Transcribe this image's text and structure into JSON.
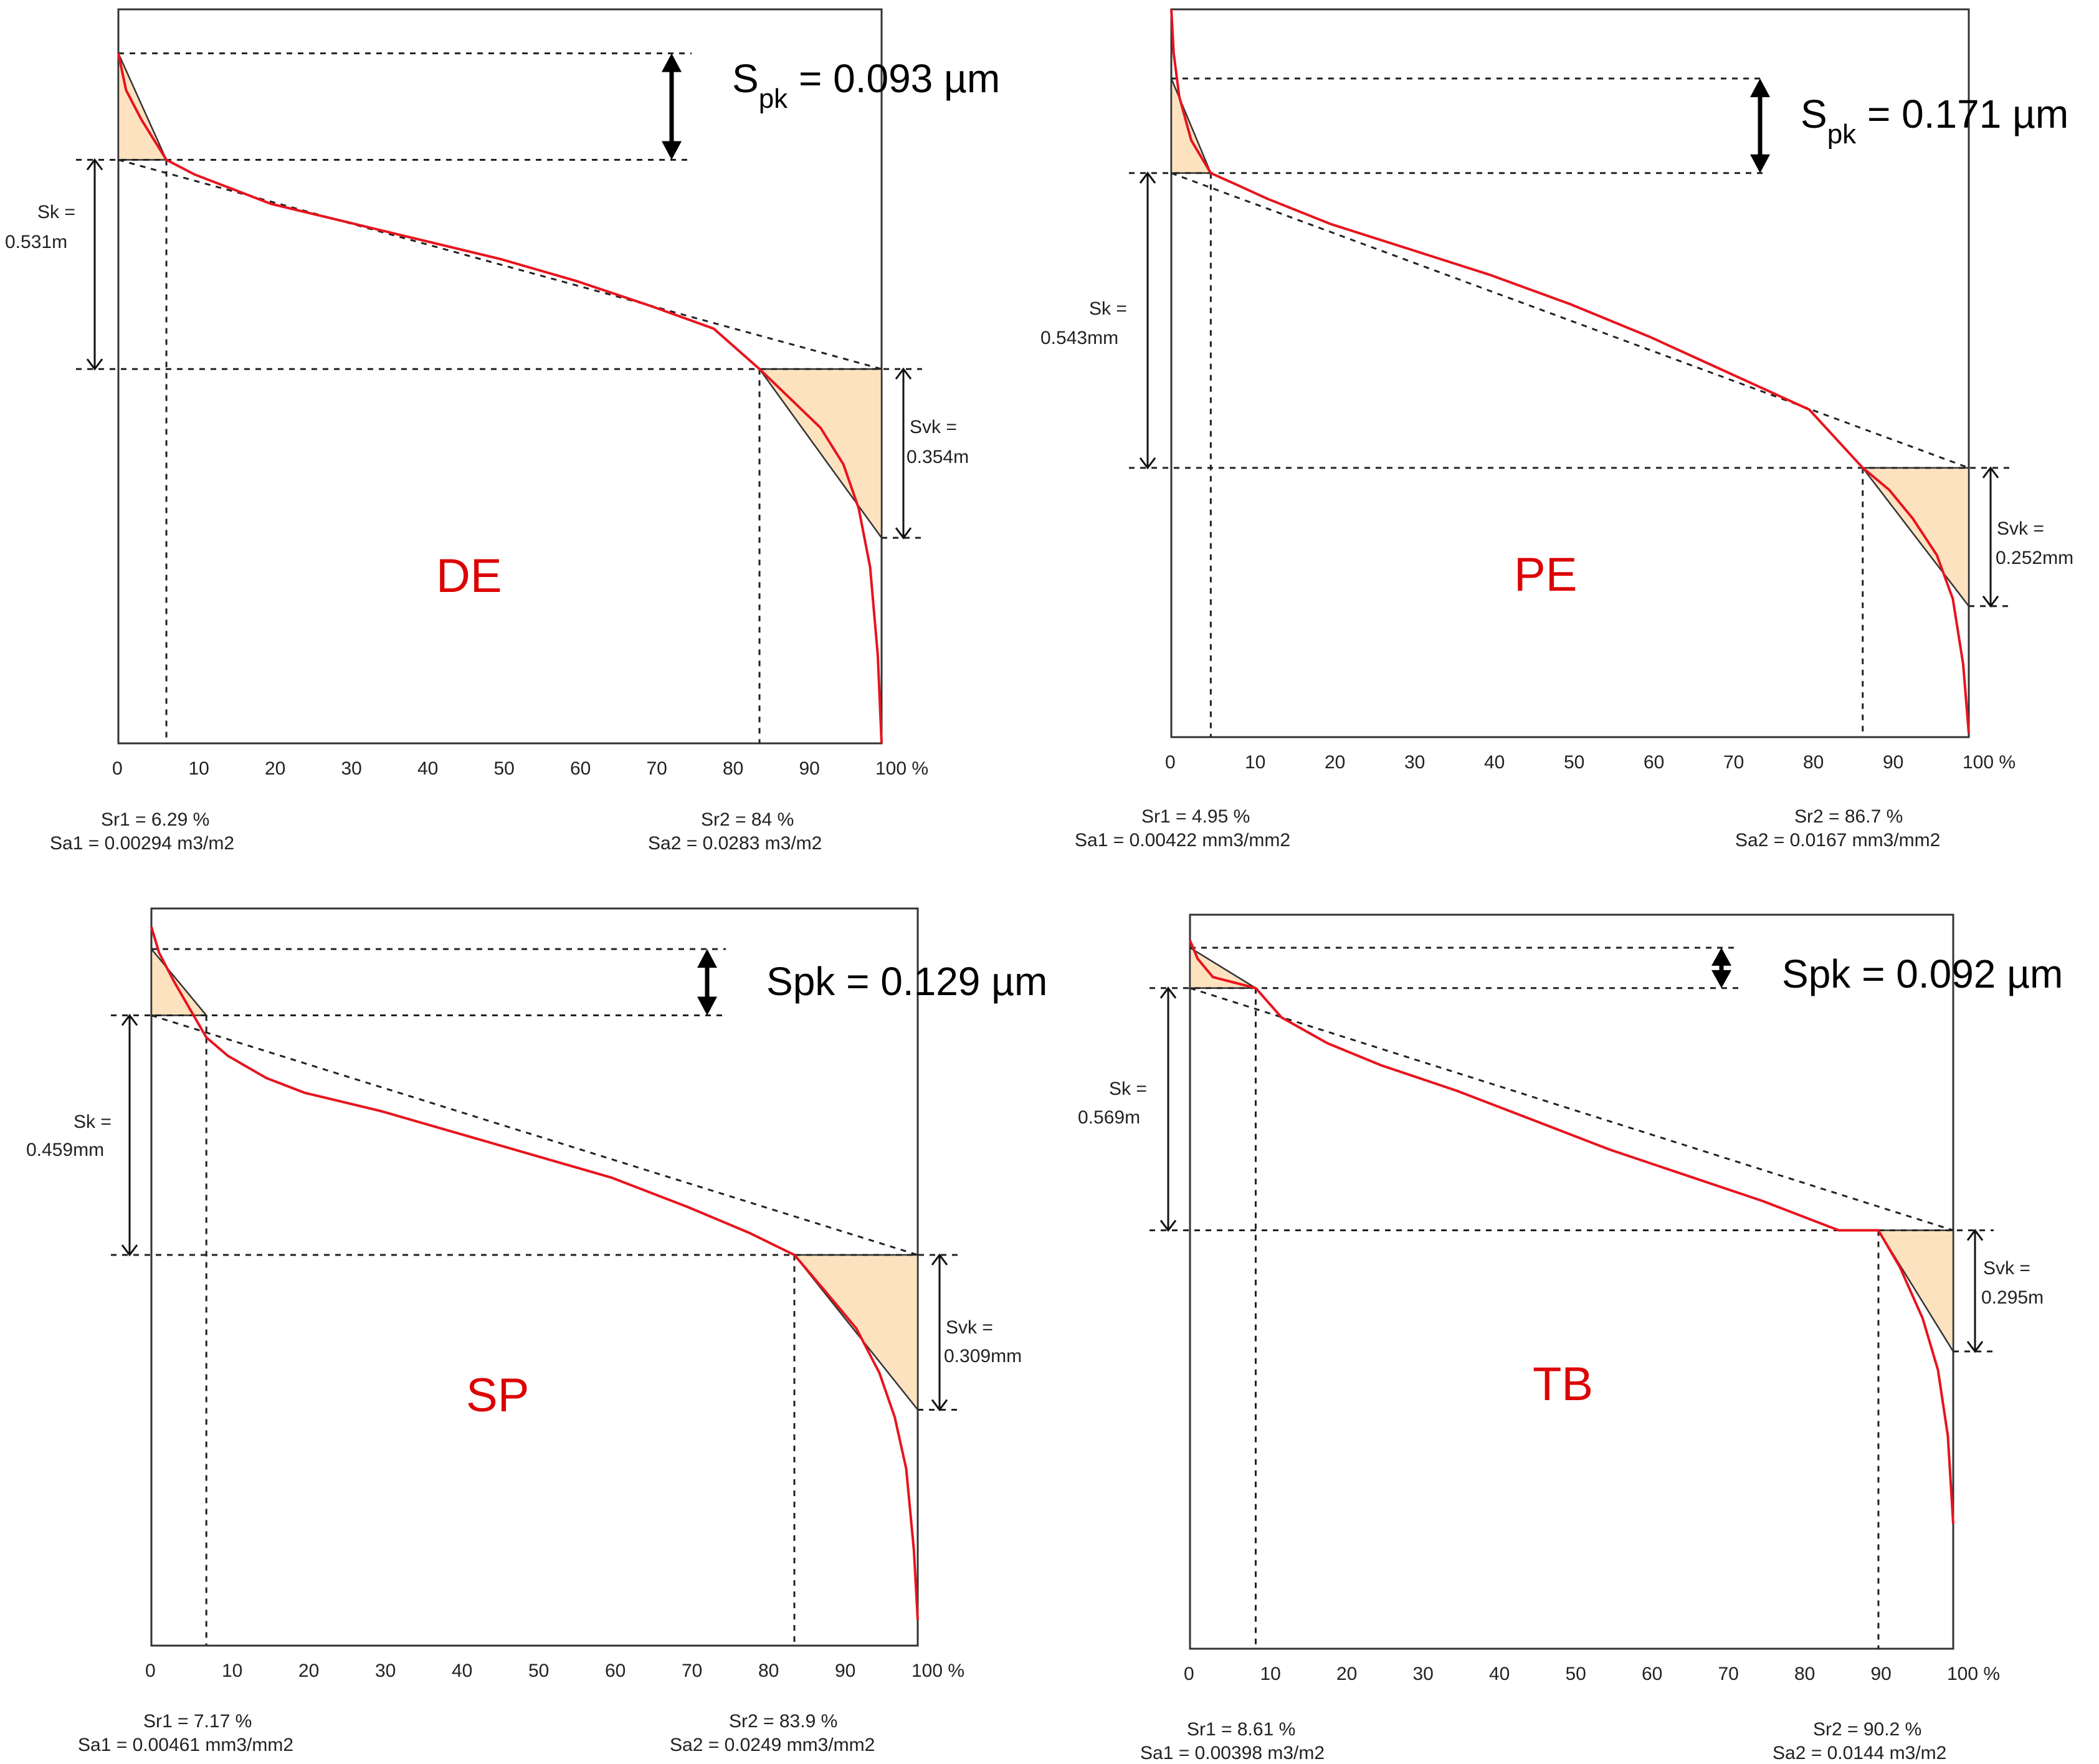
{
  "chart_data": [
    {
      "type": "line",
      "title": "DE",
      "xlabel": "%",
      "x_ticks": [
        "0",
        "10",
        "20",
        "30",
        "40",
        "50",
        "60",
        "70",
        "80",
        "90",
        "100 %"
      ],
      "xlim": [
        0,
        100
      ],
      "spk_label": {
        "prefix": "S",
        "sub": "pk",
        "rest": " = 0.093 µm"
      },
      "sk_label": [
        "Sk =",
        "0.531m"
      ],
      "svk_label": [
        "Svk =",
        "0.354m"
      ],
      "footer_left": [
        "Sr1 = 6.29  %",
        "Sa1 = 0.00294  m3/m2"
      ],
      "footer_right": [
        "Sr2 = 84  %",
        "Sa2 = 0.0283  m3/m2"
      ],
      "sr1": 6.29,
      "sr2": 84,
      "curve": {
        "x": [
          0,
          1,
          3,
          6.29,
          10,
          15,
          20,
          30,
          40,
          50,
          60,
          70,
          78,
          84,
          88,
          92,
          95,
          97,
          98.5,
          99.5,
          100
        ],
        "y": [
          0.06,
          0.11,
          0.15,
          0.205,
          0.225,
          0.245,
          0.265,
          0.29,
          0.315,
          0.34,
          0.37,
          0.405,
          0.435,
          0.49,
          0.53,
          0.57,
          0.62,
          0.68,
          0.76,
          0.88,
          1.0
        ]
      },
      "core_line": {
        "x": [
          0,
          100
        ],
        "y": [
          0.205,
          0.49
        ]
      },
      "levels": {
        "spk_top": 0.06,
        "sk_top": 0.205,
        "sk_bottom": 0.49,
        "svk_bottom": 0.72
      }
    },
    {
      "type": "line",
      "title": "PE",
      "xlabel": "%",
      "x_ticks": [
        "0",
        "10",
        "20",
        "30",
        "40",
        "50",
        "60",
        "70",
        "80",
        "90",
        "100 %"
      ],
      "xlim": [
        0,
        100
      ],
      "spk_label": {
        "prefix": "S",
        "sub": "pk",
        "rest": " = 0.171 µm"
      },
      "sk_label": [
        "Sk =",
        "0.543mm"
      ],
      "svk_label": [
        "Svk =",
        "0.252mm"
      ],
      "footer_left": [
        "Sr1 = 4.95  %",
        "Sa1 = 0.00422  mm3/mm2"
      ],
      "footer_right": [
        "Sr2 = 86.7  %",
        "Sa2 = 0.0167  mm3/mm2"
      ],
      "sr1": 4.95,
      "sr2": 86.7,
      "curve": {
        "x": [
          0,
          0.3,
          1,
          2.5,
          4.95,
          8,
          12,
          20,
          30,
          40,
          50,
          60,
          70,
          80,
          86.7,
          90,
          93,
          96,
          98,
          99.3,
          100
        ],
        "y": [
          0.0,
          0.06,
          0.12,
          0.18,
          0.225,
          0.24,
          0.26,
          0.295,
          0.33,
          0.365,
          0.405,
          0.45,
          0.5,
          0.55,
          0.63,
          0.66,
          0.7,
          0.75,
          0.81,
          0.9,
          0.995
        ]
      },
      "core_line": {
        "x": [
          0,
          100
        ],
        "y": [
          0.225,
          0.63
        ]
      },
      "levels": {
        "spk_top": 0.095,
        "sk_top": 0.225,
        "sk_bottom": 0.63,
        "svk_bottom": 0.82
      }
    },
    {
      "type": "line",
      "title": "SP",
      "xlabel": "%",
      "x_ticks": [
        "0",
        "10",
        "20",
        "30",
        "40",
        "50",
        "60",
        "70",
        "80",
        "90",
        "100 %"
      ],
      "xlim": [
        0,
        100
      ],
      "spk_label": {
        "prefix": "Spk",
        "sub": "",
        "rest": " = 0.129 µm"
      },
      "sk_label": [
        "Sk =",
        "0.459mm"
      ],
      "svk_label": [
        "Svk =",
        "0.309mm"
      ],
      "footer_left": [
        "Sr1 = 7.17  %",
        "Sa1 = 0.00461  mm3/mm2"
      ],
      "footer_right": [
        "Sr2 = 83.9  %",
        "Sa2 = 0.0249  mm3/mm2"
      ],
      "sr1": 7.17,
      "sr2": 83.9,
      "curve": {
        "x": [
          0,
          1,
          3,
          7.17,
          10,
          15,
          20,
          30,
          40,
          50,
          60,
          70,
          78,
          83.9,
          88,
          92,
          95,
          97,
          98.5,
          99.5,
          100
        ],
        "y": [
          0.025,
          0.06,
          0.1,
          0.175,
          0.2,
          0.23,
          0.25,
          0.275,
          0.305,
          0.335,
          0.365,
          0.405,
          0.44,
          0.47,
          0.52,
          0.57,
          0.63,
          0.69,
          0.76,
          0.87,
          0.965
        ]
      },
      "core_line": {
        "x": [
          0,
          100
        ],
        "y": [
          0.145,
          0.47
        ]
      },
      "levels": {
        "spk_top": 0.055,
        "sk_top": 0.145,
        "sk_bottom": 0.47,
        "svk_bottom": 0.68
      }
    },
    {
      "type": "line",
      "title": "TB",
      "xlabel": "%",
      "x_ticks": [
        "0",
        "10",
        "20",
        "30",
        "40",
        "50",
        "60",
        "70",
        "80",
        "90",
        "100 %"
      ],
      "xlim": [
        0,
        100
      ],
      "spk_label": {
        "prefix": "Spk",
        "sub": "",
        "rest": " = 0.092 µm"
      },
      "sk_label": [
        "Sk =",
        "0.569m"
      ],
      "svk_label": [
        "Svk =",
        "0.295m"
      ],
      "footer_left": [
        "Sr1 = 8.61  %",
        "Sa1 = 0.00398  m3/m2"
      ],
      "footer_right": [
        "Sr2 = 90.2  %",
        "Sa2 = 0.0144  m3/m2"
      ],
      "sr1": 8.61,
      "sr2": 90.2,
      "curve": {
        "x": [
          0,
          1,
          3,
          8.61,
          12,
          18,
          25,
          35,
          45,
          55,
          65,
          75,
          85,
          90.2,
          93,
          96,
          98,
          99.3,
          100
        ],
        "y": [
          0.035,
          0.06,
          0.085,
          0.1,
          0.14,
          0.175,
          0.205,
          0.24,
          0.28,
          0.32,
          0.355,
          0.39,
          0.43,
          0.43,
          0.48,
          0.55,
          0.62,
          0.71,
          0.83
        ]
      },
      "core_line": {
        "x": [
          0,
          100
        ],
        "y": [
          0.1,
          0.43
        ]
      },
      "levels": {
        "spk_top": 0.045,
        "sk_top": 0.1,
        "sk_bottom": 0.43,
        "svk_bottom": 0.595
      }
    }
  ]
}
